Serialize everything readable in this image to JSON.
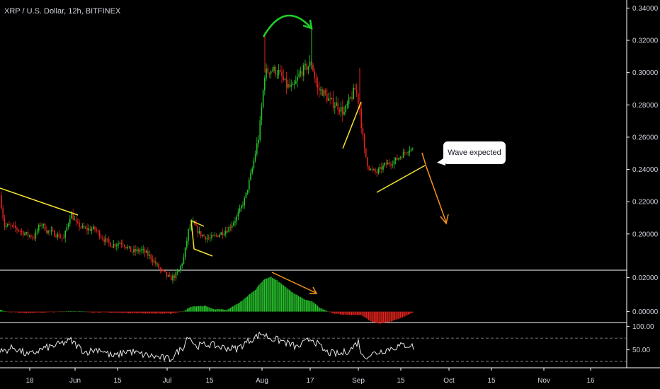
{
  "header": {
    "title": "XRP / U.S. Dollar, 12h, BITFINEX"
  },
  "annotation": {
    "text": "Wave expected"
  },
  "colors": {
    "up": "#27c22b",
    "down": "#e0231c",
    "trend": "#f4e430",
    "arrow": "#f7941d",
    "arc": "#1fd12a",
    "rsi": "#e8e8e8",
    "background": "#000000"
  },
  "chart_data": [
    {
      "type": "candlestick",
      "name": "price",
      "ylim": [
        0.178,
        0.345
      ],
      "y_ticks": [
        "0.34000",
        "0.32000",
        "0.30000",
        "0.28000",
        "0.26000",
        "0.24000",
        "0.22000",
        "0.20000"
      ],
      "y_tick_values": [
        0.34,
        0.32,
        0.3,
        0.28,
        0.26,
        0.24,
        0.22,
        0.2
      ],
      "anchors": [
        [
          0,
          0.224
        ],
        [
          6,
          0.205
        ],
        [
          14,
          0.205
        ],
        [
          24,
          0.203
        ],
        [
          36,
          0.2
        ],
        [
          48,
          0.198
        ],
        [
          58,
          0.207
        ],
        [
          66,
          0.202
        ],
        [
          78,
          0.2
        ],
        [
          90,
          0.197
        ],
        [
          100,
          0.213
        ],
        [
          108,
          0.206
        ],
        [
          120,
          0.203
        ],
        [
          134,
          0.203
        ],
        [
          146,
          0.197
        ],
        [
          158,
          0.193
        ],
        [
          172,
          0.195
        ],
        [
          186,
          0.189
        ],
        [
          200,
          0.19
        ],
        [
          212,
          0.186
        ],
        [
          226,
          0.178
        ],
        [
          240,
          0.172
        ],
        [
          252,
          0.176
        ],
        [
          260,
          0.186
        ],
        [
          266,
          0.202
        ],
        [
          272,
          0.207
        ],
        [
          282,
          0.2
        ],
        [
          296,
          0.197
        ],
        [
          310,
          0.2
        ],
        [
          322,
          0.203
        ],
        [
          334,
          0.21
        ],
        [
          346,
          0.222
        ],
        [
          356,
          0.24
        ],
        [
          366,
          0.262
        ],
        [
          374,
          0.3
        ],
        [
          384,
          0.302
        ],
        [
          394,
          0.3
        ],
        [
          404,
          0.292
        ],
        [
          414,
          0.29
        ],
        [
          424,
          0.3
        ],
        [
          432,
          0.303
        ],
        [
          440,
          0.306
        ],
        [
          448,
          0.29
        ],
        [
          456,
          0.288
        ],
        [
          466,
          0.282
        ],
        [
          476,
          0.28
        ],
        [
          486,
          0.275
        ],
        [
          494,
          0.283
        ],
        [
          502,
          0.29
        ],
        [
          508,
          0.278
        ],
        [
          514,
          0.252
        ],
        [
          522,
          0.24
        ],
        [
          532,
          0.238
        ],
        [
          544,
          0.243
        ],
        [
          556,
          0.245
        ],
        [
          568,
          0.249
        ],
        [
          578,
          0.253
        ],
        [
          584,
          0.252
        ]
      ],
      "current_price": "0.25200",
      "peak_price": 0.325
    },
    {
      "type": "histogram",
      "name": "oscillator",
      "ylim": [
        -0.006,
        0.024
      ],
      "y_ticks": [
        "0.02000",
        "0.00000"
      ],
      "y_tick_values": [
        0.02,
        0.0
      ],
      "anchors": [
        [
          0,
          0.0012
        ],
        [
          10,
          -0.0002
        ],
        [
          40,
          -0.0008
        ],
        [
          80,
          -0.0002
        ],
        [
          100,
          0.0004
        ],
        [
          130,
          -0.0004
        ],
        [
          160,
          -0.0006
        ],
        [
          200,
          -0.001
        ],
        [
          240,
          -0.0012
        ],
        [
          258,
          0.0002
        ],
        [
          270,
          0.003
        ],
        [
          290,
          0.0034
        ],
        [
          300,
          0.0016
        ],
        [
          320,
          0.001
        ],
        [
          340,
          0.006
        ],
        [
          360,
          0.013
        ],
        [
          372,
          0.019
        ],
        [
          382,
          0.0205
        ],
        [
          392,
          0.018
        ],
        [
          410,
          0.012
        ],
        [
          430,
          0.007
        ],
        [
          440,
          0.006
        ],
        [
          452,
          0.002
        ],
        [
          470,
          -0.001
        ],
        [
          490,
          -0.002
        ],
        [
          510,
          -0.002
        ],
        [
          524,
          -0.006
        ],
        [
          536,
          -0.007
        ],
        [
          550,
          -0.006
        ],
        [
          570,
          -0.003
        ],
        [
          584,
          -0.0002
        ]
      ]
    },
    {
      "type": "line",
      "name": "rsi",
      "ylim": [
        13,
        107
      ],
      "y_ticks": [
        "100.00",
        "50.00"
      ],
      "y_tick_values": [
        100,
        50
      ],
      "level_lines": [
        75,
        25
      ],
      "anchors": [
        [
          0,
          45
        ],
        [
          20,
          55
        ],
        [
          40,
          38
        ],
        [
          60,
          52
        ],
        [
          80,
          60
        ],
        [
          100,
          70
        ],
        [
          120,
          45
        ],
        [
          140,
          52
        ],
        [
          160,
          35
        ],
        [
          180,
          48
        ],
        [
          200,
          40
        ],
        [
          220,
          35
        ],
        [
          240,
          30
        ],
        [
          258,
          55
        ],
        [
          266,
          82
        ],
        [
          276,
          58
        ],
        [
          296,
          62
        ],
        [
          314,
          55
        ],
        [
          334,
          52
        ],
        [
          352,
          70
        ],
        [
          370,
          85
        ],
        [
          382,
          75
        ],
        [
          400,
          68
        ],
        [
          420,
          55
        ],
        [
          440,
          75
        ],
        [
          460,
          45
        ],
        [
          480,
          40
        ],
        [
          496,
          52
        ],
        [
          506,
          68
        ],
        [
          512,
          35
        ],
        [
          524,
          40
        ],
        [
          540,
          48
        ],
        [
          556,
          55
        ],
        [
          570,
          60
        ],
        [
          580,
          60
        ],
        [
          584,
          55
        ]
      ]
    }
  ],
  "x_axis": {
    "labels": [
      {
        "text": "18",
        "x": 42
      },
      {
        "text": "Jun",
        "x": 106
      },
      {
        "text": "15",
        "x": 166
      },
      {
        "text": "Jul",
        "x": 236
      },
      {
        "text": "15",
        "x": 296
      },
      {
        "text": "Aug",
        "x": 370
      },
      {
        "text": "17",
        "x": 438
      },
      {
        "text": "Sep",
        "x": 506
      },
      {
        "text": "15",
        "x": 566
      },
      {
        "text": "Oct",
        "x": 634
      },
      {
        "text": "15",
        "x": 694
      },
      {
        "text": "Nov",
        "x": 768
      },
      {
        "text": "16",
        "x": 834
      }
    ]
  }
}
